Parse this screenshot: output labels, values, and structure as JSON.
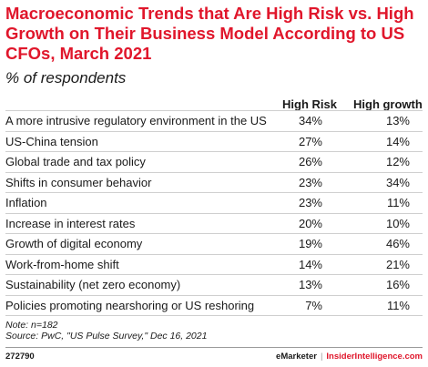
{
  "title": "Macroeconomic Trends that Are High Risk vs. High Growth on Their Business Model According to US CFOs, March 2021",
  "subtitle": "% of respondents",
  "chart_data": {
    "type": "table",
    "columns": [
      "High Risk",
      "High growth"
    ],
    "rows": [
      {
        "label": "A more intrusive regulatory  environment in the US",
        "high_risk": "34%",
        "high_growth": "13%"
      },
      {
        "label": "US-China tension",
        "high_risk": "27%",
        "high_growth": "14%"
      },
      {
        "label": "Global trade and tax policy",
        "high_risk": "26%",
        "high_growth": "12%"
      },
      {
        "label": "Shifts in consumer behavior",
        "high_risk": "23%",
        "high_growth": "34%"
      },
      {
        "label": "Inflation",
        "high_risk": "23%",
        "high_growth": "11%"
      },
      {
        "label": "Increase in interest rates",
        "high_risk": "20%",
        "high_growth": "10%"
      },
      {
        "label": "Growth of digital economy",
        "high_risk": "19%",
        "high_growth": "46%"
      },
      {
        "label": "Work-from-home shift",
        "high_risk": "14%",
        "high_growth": "21%"
      },
      {
        "label": "Sustainability (net zero economy)",
        "high_risk": "13%",
        "high_growth": "16%"
      },
      {
        "label": "Policies promoting nearshoring or US reshoring",
        "high_risk": "7%",
        "high_growth": "11%"
      }
    ]
  },
  "notes": {
    "note": "Note: n=182",
    "source": "Source: PwC, \"US Pulse Survey,\" Dec 16, 2021"
  },
  "footer": {
    "chart_id": "272790",
    "brand1": "eMarketer",
    "separator": "|",
    "brand2": "InsiderIntelligence.com"
  },
  "colors": {
    "accent": "#e0162b"
  }
}
